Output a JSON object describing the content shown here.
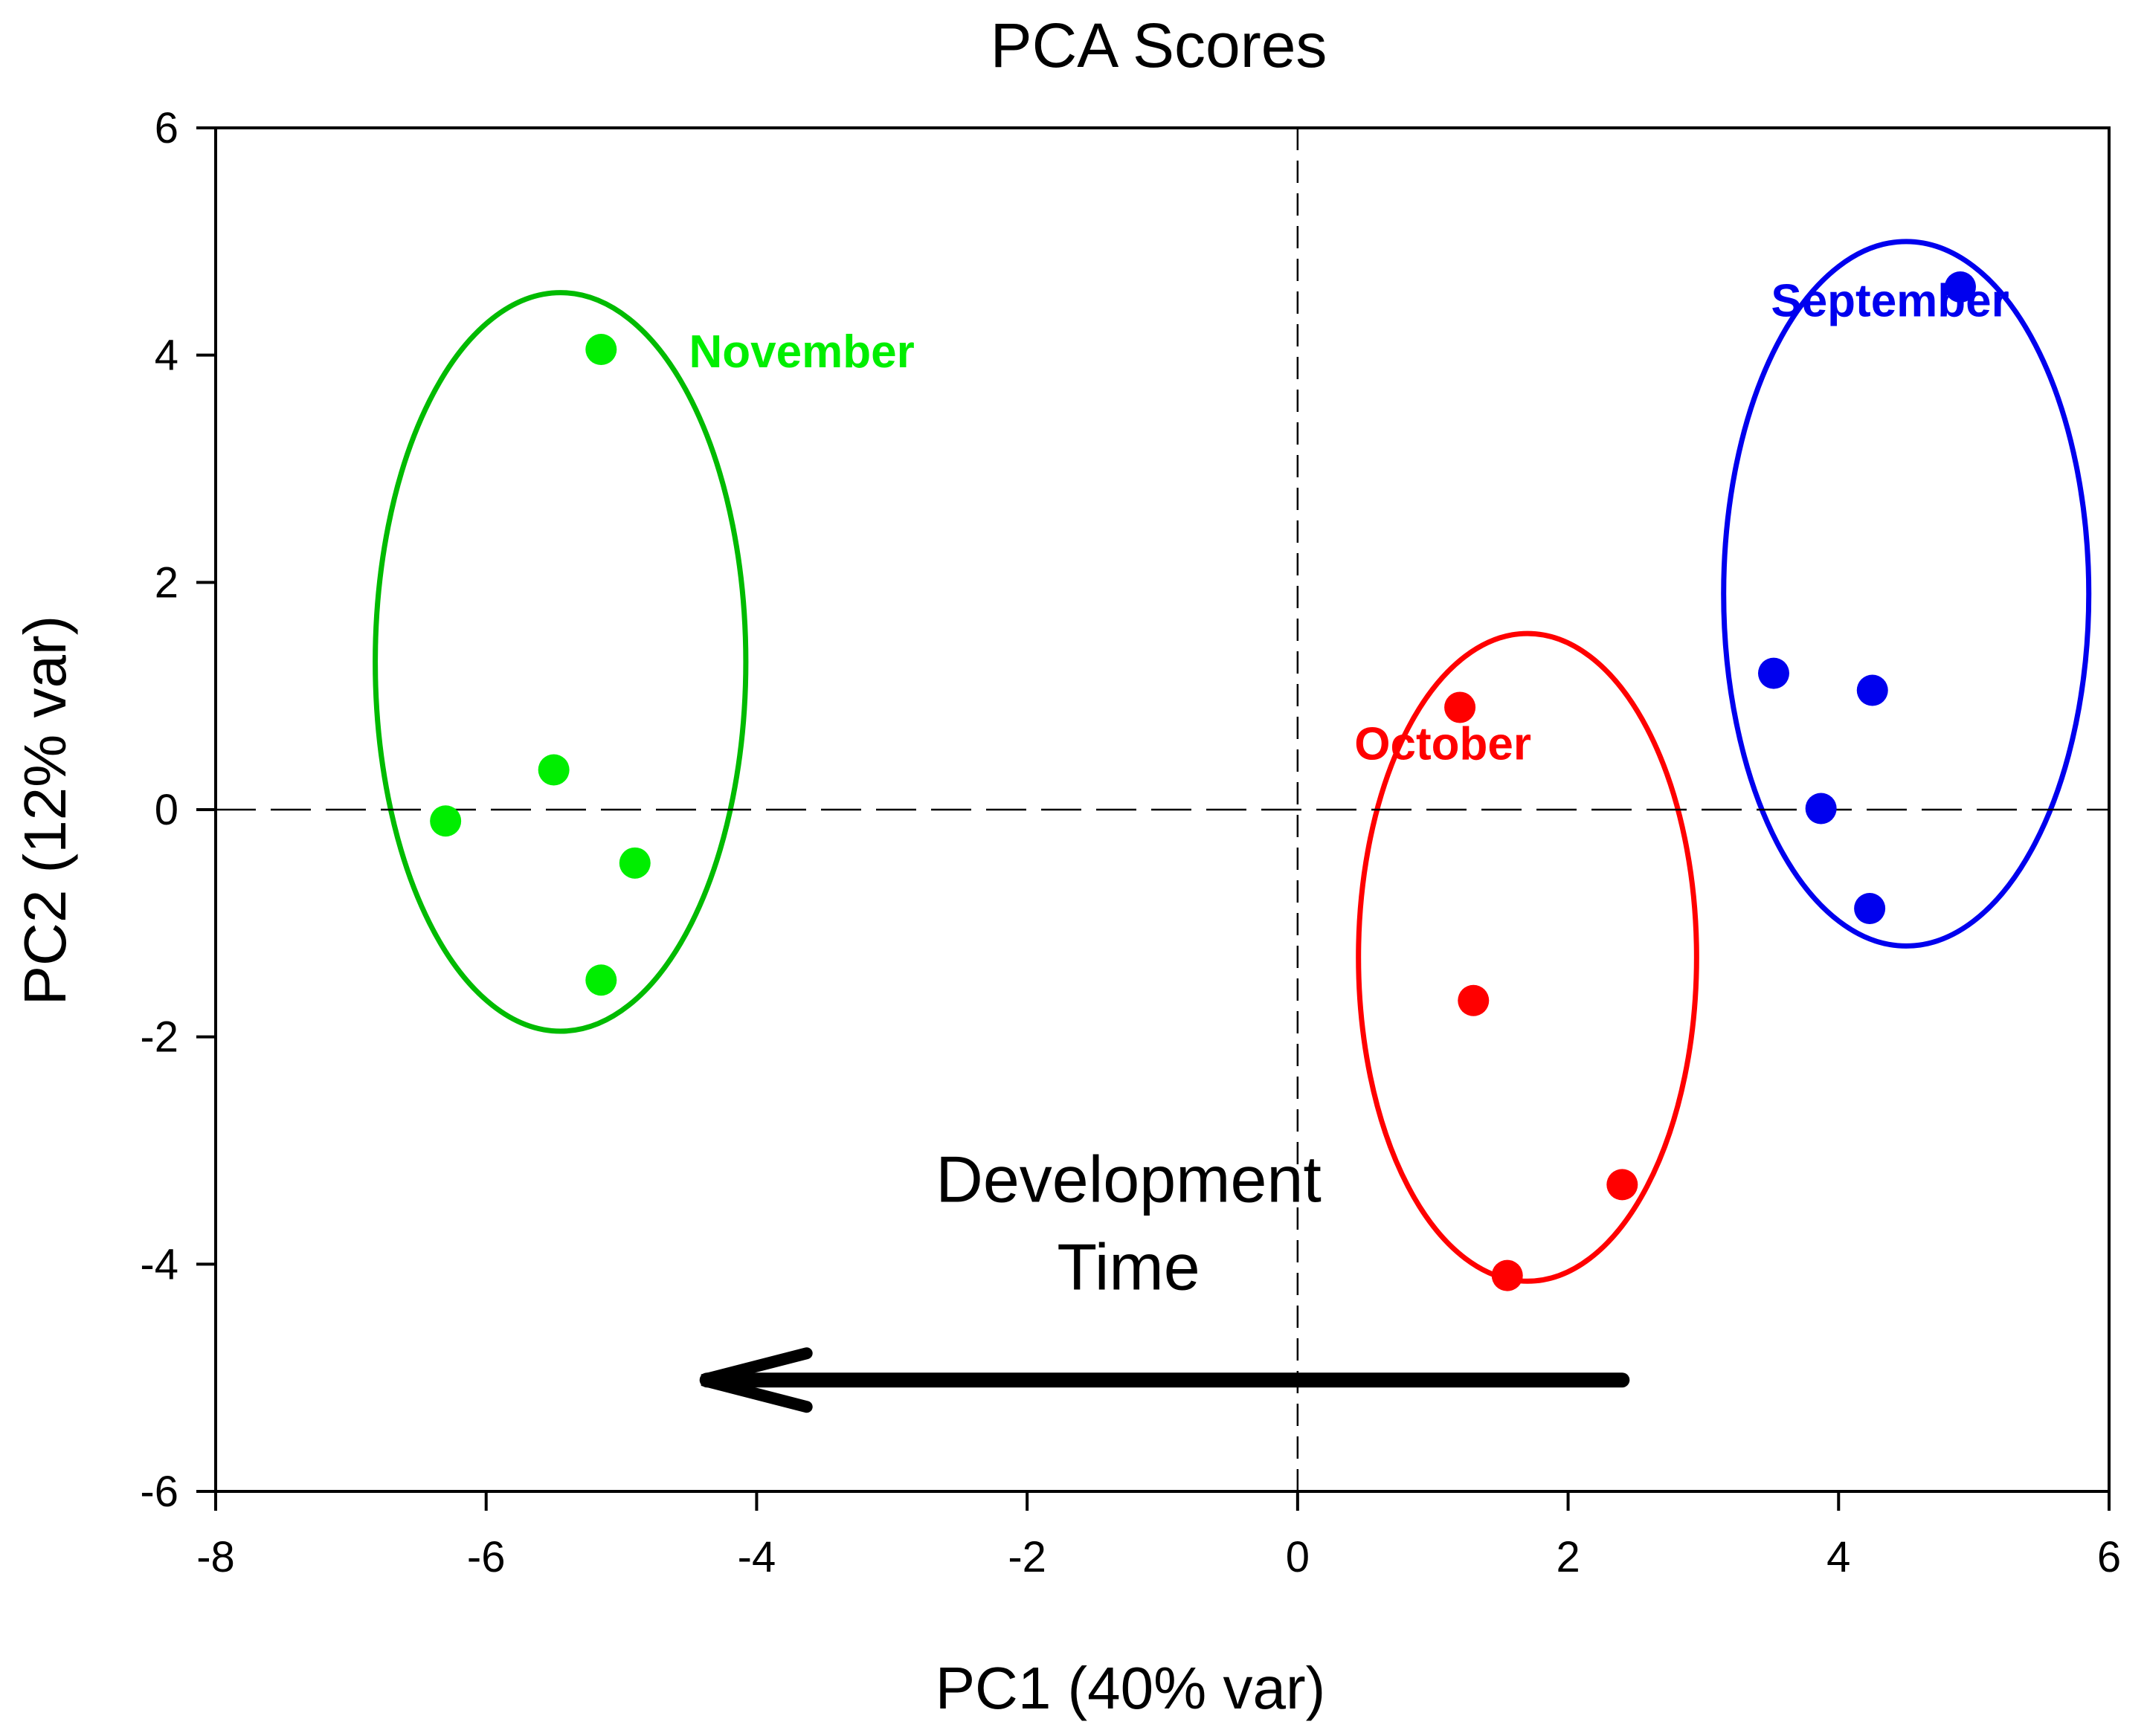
{
  "chart_data": {
    "type": "scatter",
    "title": "PCA Scores",
    "xlabel": "PC1 (40% var)",
    "ylabel": "PC2 (12% var)",
    "xlim": [
      -8,
      6
    ],
    "ylim": [
      -6,
      6
    ],
    "xticks": [
      -8,
      -6,
      -4,
      -2,
      0,
      2,
      4,
      6
    ],
    "yticks": [
      -6,
      -4,
      -2,
      0,
      2,
      4,
      6
    ],
    "grid": false,
    "reference_lines": {
      "x": 0,
      "y": 0,
      "style": "dashed"
    },
    "series": [
      {
        "name": "November",
        "color": "#00ee00",
        "ellipse_color": "#00bb00",
        "points": [
          {
            "x": -5.15,
            "y": 4.05
          },
          {
            "x": -5.5,
            "y": 0.35
          },
          {
            "x": -6.3,
            "y": -0.1
          },
          {
            "x": -4.9,
            "y": -0.47
          },
          {
            "x": -5.15,
            "y": -1.5
          }
        ],
        "ellipse": {
          "cx": -5.45,
          "cy": 1.3,
          "rx": 1.37,
          "ry": 3.25
        },
        "label": {
          "text": "November",
          "x": -4.5,
          "y": 4.05
        }
      },
      {
        "name": "October",
        "color": "#ff0000",
        "ellipse_color": "#ff0000",
        "points": [
          {
            "x": 1.2,
            "y": 0.9
          },
          {
            "x": 1.3,
            "y": -1.68
          },
          {
            "x": 2.4,
            "y": -3.3
          },
          {
            "x": 1.55,
            "y": -4.1
          }
        ],
        "ellipse": {
          "cx": 1.7,
          "cy": -1.3,
          "rx": 1.25,
          "ry": 2.85
        },
        "label": {
          "text": "October",
          "x": 0.42,
          "y": 0.6
        }
      },
      {
        "name": "September",
        "color": "#0000ee",
        "ellipse_color": "#0000ee",
        "points": [
          {
            "x": 4.9,
            "y": 4.6
          },
          {
            "x": 3.52,
            "y": 1.2
          },
          {
            "x": 4.25,
            "y": 1.05
          },
          {
            "x": 3.87,
            "y": 0.01
          },
          {
            "x": 4.23,
            "y": -0.87
          }
        ],
        "ellipse": {
          "cx": 4.5,
          "cy": 1.9,
          "rx": 1.35,
          "ry": 3.1
        },
        "label": {
          "text": "September",
          "x": 3.5,
          "y": 4.5
        }
      }
    ],
    "annotations": [
      {
        "type": "text",
        "lines": [
          "Development",
          "Time"
        ],
        "x": -1.25,
        "y": -3.45
      },
      {
        "type": "arrow",
        "from": {
          "x": 2.4,
          "y": -5.02
        },
        "to": {
          "x": -4.4,
          "y": -5.02
        }
      }
    ]
  }
}
